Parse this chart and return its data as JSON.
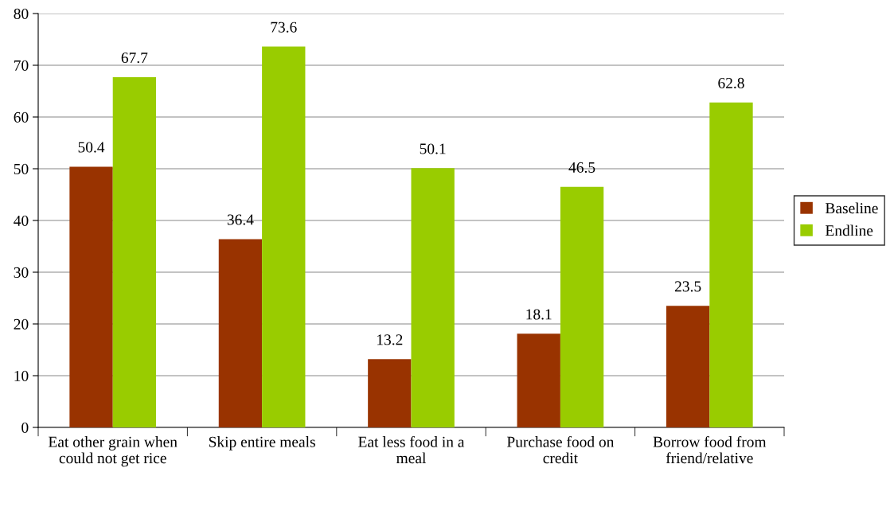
{
  "chart_data": {
    "type": "bar",
    "categories": [
      "Eat other grain when could not get rice",
      "Skip entire meals",
      "Eat less food in a meal",
      "Purchase food on credit",
      "Borrow food from friend/relative"
    ],
    "series": [
      {
        "name": "Baseline",
        "color": "#993300",
        "values": [
          50.4,
          36.4,
          13.2,
          18.1,
          23.5
        ]
      },
      {
        "name": "Endline",
        "color": "#99cc00",
        "values": [
          67.7,
          73.6,
          50.1,
          46.5,
          62.8
        ]
      }
    ],
    "ylim": [
      0,
      80
    ],
    "yticks": [
      0,
      10,
      20,
      30,
      40,
      50,
      60,
      70,
      80
    ],
    "grid": "y",
    "legend": "right",
    "data_labels": true
  }
}
